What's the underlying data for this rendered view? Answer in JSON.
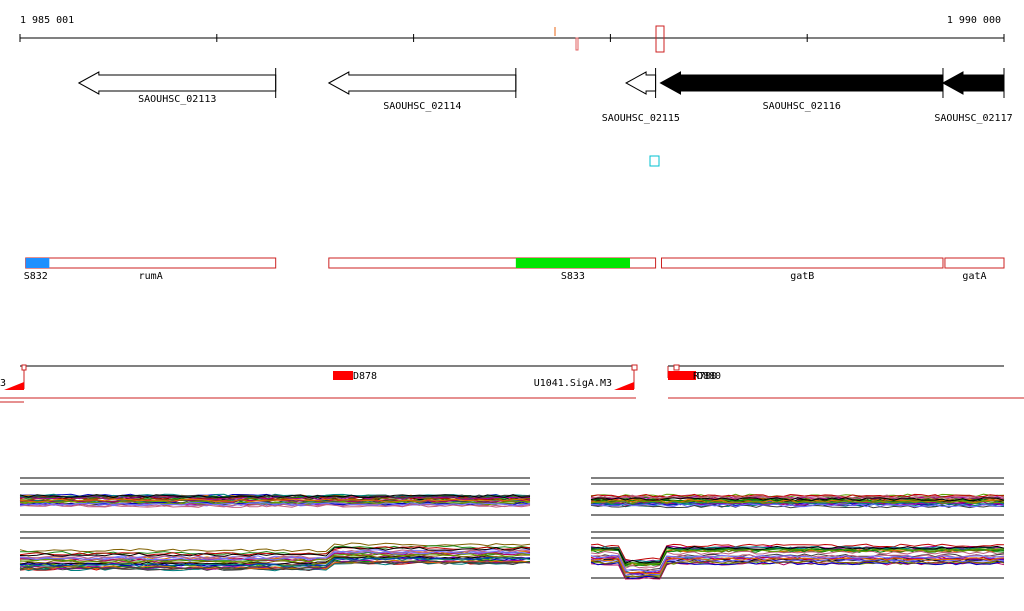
{
  "ruler": {
    "start_label": "1 985 001",
    "end_label": "1 990 000",
    "start_bp": 1985001,
    "end_bp": 1990000
  },
  "genes": [
    {
      "name": "SAOUHSC_02113",
      "start": 1985300,
      "end": 1986300,
      "strand": "-",
      "fill": "#ffffff",
      "label_row": 0
    },
    {
      "name": "SAOUHSC_02114",
      "start": 1986570,
      "end": 1987520,
      "strand": "-",
      "fill": "#ffffff",
      "label_row": 1
    },
    {
      "name": "SAOUHSC_02115",
      "start": 1988080,
      "end": 1988230,
      "strand": "-",
      "fill": "#ffffff",
      "label_row": 2
    },
    {
      "name": "SAOUHSC_02116",
      "start": 1988255,
      "end": 1989690,
      "strand": "-",
      "fill": "#000000",
      "label_row": 1
    },
    {
      "name": "SAOUHSC_02117",
      "start": 1989690,
      "end": 1990000,
      "strand": "-",
      "fill": "#000000",
      "label_row": 2
    }
  ],
  "operons": [
    {
      "start": 1985030,
      "end": 1986300,
      "label": "rumA",
      "segments": [
        {
          "name": "S832",
          "start": 1985030,
          "end": 1985150,
          "color": "#1e90ff"
        }
      ]
    },
    {
      "start": 1986570,
      "end": 1988230,
      "label": "",
      "segments": [
        {
          "name": "S833",
          "start": 1987520,
          "end": 1988100,
          "color": "#00e600"
        }
      ]
    },
    {
      "start": 1988260,
      "end": 1989690,
      "label": "gatB",
      "segments": []
    },
    {
      "start": 1989700,
      "end": 1990000,
      "label": "gatA",
      "segments": []
    }
  ],
  "features": [
    {
      "label": "3"
    },
    {
      "label": "D878"
    },
    {
      "label": "U1041.SigA.M3"
    },
    {
      "label": "R780"
    },
    {
      "label": "D880"
    }
  ],
  "colors": {
    "operon_outline": "#cc2222",
    "feature_red": "#ff0000",
    "minus_strand_arrow": "#000000",
    "cyan_marker": "#00c0d0"
  }
}
